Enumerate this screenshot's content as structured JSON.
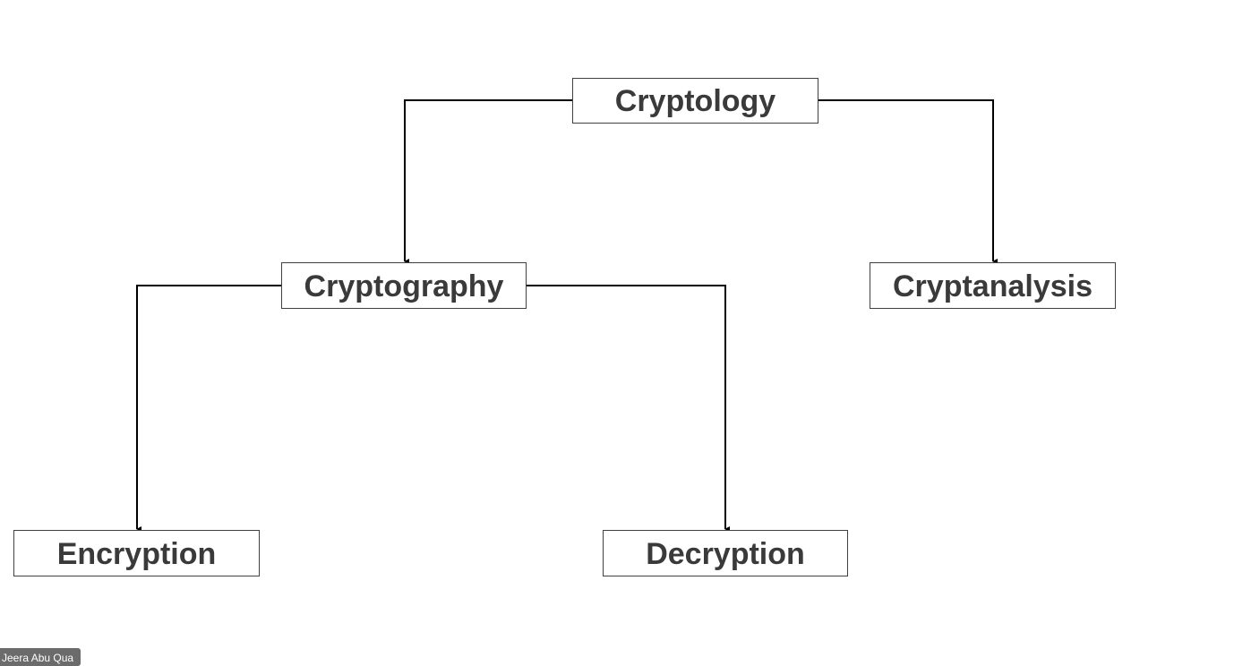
{
  "diagram": {
    "nodes": {
      "cryptology": "Cryptology",
      "cryptography": "Cryptography",
      "cryptanalysis": "Cryptanalysis",
      "encryption": "Encryption",
      "decryption": "Decryption"
    },
    "edges": [
      {
        "from": "Cryptology",
        "to": "Cryptography"
      },
      {
        "from": "Cryptology",
        "to": "Cryptanalysis"
      },
      {
        "from": "Cryptography",
        "to": "Encryption"
      },
      {
        "from": "Cryptography",
        "to": "Decryption"
      }
    ],
    "colors": {
      "line": "#000000",
      "text": "#3a3a3a",
      "border": "#404040",
      "tag_background": "#6b6b6b"
    }
  },
  "footer": {
    "author_tag": "Jeera Abu Qua"
  }
}
